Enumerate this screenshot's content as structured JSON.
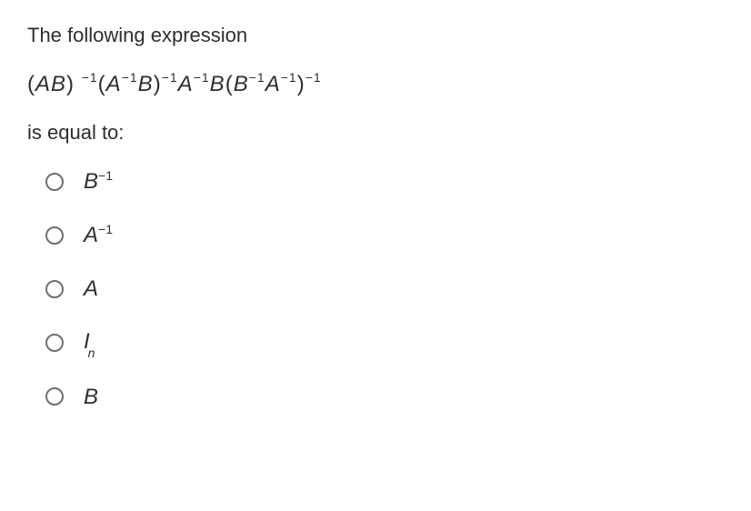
{
  "prompt": {
    "line1": "The following expression",
    "line2": "is equal to:"
  },
  "expression": {
    "parts": [
      {
        "t": "(",
        "cls": "op"
      },
      {
        "t": "AB"
      },
      {
        "t": ")",
        "cls": "op"
      },
      {
        "t": " "
      },
      {
        "t": "−",
        "cls": "sup"
      },
      {
        "t": "1",
        "cls": "sup"
      },
      {
        "t": "(",
        "cls": "op"
      },
      {
        "t": "A"
      },
      {
        "t": "−",
        "cls": "sup"
      },
      {
        "t": "1",
        "cls": "sup"
      },
      {
        "t": "B"
      },
      {
        "t": ")",
        "cls": "op"
      },
      {
        "t": "−",
        "cls": "sup"
      },
      {
        "t": "1",
        "cls": "sup"
      },
      {
        "t": "A"
      },
      {
        "t": "−",
        "cls": "sup"
      },
      {
        "t": "1",
        "cls": "sup"
      },
      {
        "t": "B"
      },
      {
        "t": "(",
        "cls": "op"
      },
      {
        "t": "B"
      },
      {
        "t": "−",
        "cls": "sup"
      },
      {
        "t": "1",
        "cls": "sup"
      },
      {
        "t": "A"
      },
      {
        "t": "−",
        "cls": "sup"
      },
      {
        "t": "1",
        "cls": "sup"
      },
      {
        "t": ")",
        "cls": "op"
      },
      {
        "t": "−",
        "cls": "sup"
      },
      {
        "t": "1",
        "cls": "sup"
      }
    ]
  },
  "options": {
    "a": {
      "base": "B",
      "sup": "−1"
    },
    "b": {
      "base": "A",
      "sup": "−1"
    },
    "c": {
      "base": "A",
      "sup": ""
    },
    "d": {
      "base": "I",
      "sub": "n"
    },
    "e": {
      "base": "B",
      "sup": ""
    }
  }
}
